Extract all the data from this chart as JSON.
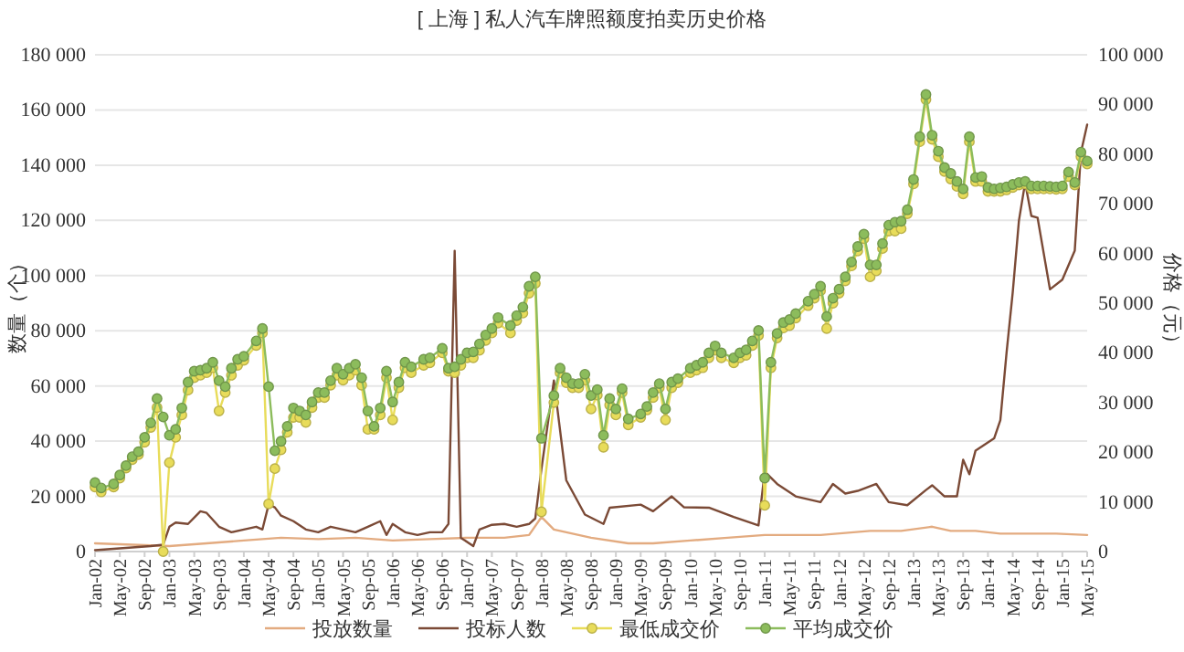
{
  "chart_data": {
    "type": "line",
    "title": "[ 上海 ] 私人汽车牌照额度拍卖历史价格",
    "ylabel": "数量（个）",
    "y2label": "价格（元）",
    "xlim": [
      "2002-01",
      "2015-05"
    ],
    "xticks": [
      {
        "value": "2002-01",
        "label": "Jan-02"
      },
      {
        "value": "2002-05",
        "label": "May-02"
      },
      {
        "value": "2002-09",
        "label": "Sep-02"
      },
      {
        "value": "2003-01",
        "label": "Jan-03"
      },
      {
        "value": "2003-05",
        "label": "May-03"
      },
      {
        "value": "2003-09",
        "label": "Sep-03"
      },
      {
        "value": "2004-01",
        "label": "Jan-04"
      },
      {
        "value": "2004-05",
        "label": "May-04"
      },
      {
        "value": "2004-09",
        "label": "Sep-04"
      },
      {
        "value": "2005-01",
        "label": "Jan-05"
      },
      {
        "value": "2005-05",
        "label": "May-05"
      },
      {
        "value": "2005-09",
        "label": "Sep-05"
      },
      {
        "value": "2006-01",
        "label": "Jan-06"
      },
      {
        "value": "2006-05",
        "label": "May-06"
      },
      {
        "value": "2006-09",
        "label": "Sep-06"
      },
      {
        "value": "2007-01",
        "label": "Jan-07"
      },
      {
        "value": "2007-05",
        "label": "May-07"
      },
      {
        "value": "2007-09",
        "label": "Sep-07"
      },
      {
        "value": "2008-01",
        "label": "Jan-08"
      },
      {
        "value": "2008-05",
        "label": "May-08"
      },
      {
        "value": "2008-09",
        "label": "Sep-08"
      },
      {
        "value": "2009-01",
        "label": "Jan-09"
      },
      {
        "value": "2009-05",
        "label": "May-09"
      },
      {
        "value": "2009-09",
        "label": "Sep-09"
      },
      {
        "value": "2010-01",
        "label": "Jan-10"
      },
      {
        "value": "2010-05",
        "label": "May-10"
      },
      {
        "value": "2010-09",
        "label": "Sep-10"
      },
      {
        "value": "2011-01",
        "label": "Jan-11"
      },
      {
        "value": "2011-05",
        "label": "May-11"
      },
      {
        "value": "2011-09",
        "label": "Sep-11"
      },
      {
        "value": "2012-01",
        "label": "Jan-12"
      },
      {
        "value": "2012-05",
        "label": "May-12"
      },
      {
        "value": "2012-09",
        "label": "Sep-12"
      },
      {
        "value": "2013-01",
        "label": "Jan-13"
      },
      {
        "value": "2013-05",
        "label": "May-13"
      },
      {
        "value": "2013-09",
        "label": "Sep-13"
      },
      {
        "value": "2014-01",
        "label": "Jan-14"
      },
      {
        "value": "2014-05",
        "label": "May-14"
      },
      {
        "value": "2014-09",
        "label": "Sep-14"
      },
      {
        "value": "2015-01",
        "label": "Jan-15"
      },
      {
        "value": "2015-05",
        "label": "May-15"
      }
    ],
    "ylim": [
      0,
      180000
    ],
    "yticks": [
      0,
      {
        "value": 20000,
        "label": "20 000"
      },
      {
        "value": 40000,
        "label": "40 000"
      },
      {
        "value": 60000,
        "label": "60 000"
      },
      {
        "value": 80000,
        "label": "80 000"
      },
      {
        "value": 100000,
        "label": "100 000"
      },
      {
        "value": 120000,
        "label": "120 000"
      },
      {
        "value": 140000,
        "label": "140 000"
      },
      {
        "value": 160000,
        "label": "160 000"
      },
      {
        "value": 180000,
        "label": "180 000"
      }
    ],
    "y2lim": [
      0,
      100000
    ],
    "y2ticks": [
      0,
      {
        "value": 10000,
        "label": "10 000"
      },
      {
        "value": 20000,
        "label": "20 000"
      },
      {
        "value": 30000,
        "label": "30 000"
      },
      {
        "value": 40000,
        "label": "40 000"
      },
      {
        "value": 50000,
        "label": "50 000"
      },
      {
        "value": 60000,
        "label": "60 000"
      },
      {
        "value": 70000,
        "label": "70 000"
      },
      {
        "value": 80000,
        "label": "80 000"
      },
      {
        "value": 90000,
        "label": "90 000"
      },
      {
        "value": 100000,
        "label": "100 000"
      }
    ],
    "grid": "y",
    "legend": "bottom",
    "series": [
      {
        "name": "投放数量",
        "color": "#e3ab80",
        "x": [
          "2002-01",
          "2002-07",
          "2003-01",
          "2003-07",
          "2004-01",
          "2004-07",
          "2005-01",
          "2005-07",
          "2006-01",
          "2006-07",
          "2007-01",
          "2007-07",
          "2007-11",
          "2008-01",
          "2008-03",
          "2008-09",
          "2009-03",
          "2009-07",
          "2010-01",
          "2010-07",
          "2011-01",
          "2011-10",
          "2012-06",
          "2012-11",
          "2013-04",
          "2013-07",
          "2013-11",
          "2014-03",
          "2014-07",
          "2014-12",
          "2015-05"
        ],
        "values": [
          3000,
          2500,
          2000,
          3000,
          4000,
          5000,
          4500,
          5000,
          4000,
          4500,
          5000,
          5000,
          6000,
          12500,
          8000,
          5000,
          3000,
          3000,
          4000,
          5000,
          6000,
          6000,
          7500,
          7500,
          9000,
          7500,
          7500,
          6500,
          6500,
          6500,
          6000
        ]
      },
      {
        "name": "投标人数",
        "color": "#7b4a36",
        "x": [
          "2002-01",
          "2002-04",
          "2002-07",
          "2002-10",
          "2002-12",
          "2003-01",
          "2003-02",
          "2003-04",
          "2003-06",
          "2003-07",
          "2003-09",
          "2003-11",
          "2004-01",
          "2004-03",
          "2004-04",
          "2004-05",
          "2004-06",
          "2004-07",
          "2004-09",
          "2004-11",
          "2005-01",
          "2005-03",
          "2005-05",
          "2005-07",
          "2005-09",
          "2005-11",
          "2005-12",
          "2006-01",
          "2006-03",
          "2006-05",
          "2006-07",
          "2006-09",
          "2006-10",
          "2006-11",
          "2006-12",
          "2007-02",
          "2007-03",
          "2007-05",
          "2007-07",
          "2007-09",
          "2007-11",
          "2007-12",
          "2008-01",
          "2008-03",
          "2008-05",
          "2008-08",
          "2008-11",
          "2008-12",
          "2009-05",
          "2009-07",
          "2009-10",
          "2009-12",
          "2010-04",
          "2010-08",
          "2010-12",
          "2011-01",
          "2011-03",
          "2011-06",
          "2011-10",
          "2011-12",
          "2012-02",
          "2012-04",
          "2012-07",
          "2012-09",
          "2012-12",
          "2013-03",
          "2013-04",
          "2013-06",
          "2013-08",
          "2013-09",
          "2013-10",
          "2013-11",
          "2014-02",
          "2014-03",
          "2014-04",
          "2014-05",
          "2014-06",
          "2014-07",
          "2014-08",
          "2014-09",
          "2014-11",
          "2015-01",
          "2015-03",
          "2015-04",
          "2015-05"
        ],
        "values": [
          500,
          1000,
          1500,
          2000,
          2500,
          9000,
          10500,
          10000,
          14600,
          14000,
          9000,
          7000,
          8000,
          9000,
          8000,
          17000,
          16000,
          13000,
          11000,
          8000,
          7000,
          9000,
          8000,
          7000,
          9000,
          11000,
          6000,
          10000,
          7000,
          6000,
          7000,
          7000,
          10000,
          109000,
          5000,
          2000,
          8000,
          9700,
          10000,
          9000,
          10000,
          12000,
          30000,
          62000,
          25800,
          13400,
          10000,
          15900,
          17000,
          14600,
          20000,
          16000,
          15900,
          12500,
          9500,
          29000,
          24500,
          20000,
          17900,
          24500,
          21000,
          22000,
          24500,
          17900,
          16800,
          22300,
          24000,
          20000,
          20000,
          33300,
          28000,
          36600,
          41000,
          47600,
          72000,
          94000,
          120000,
          133700,
          121600,
          121000,
          95000,
          98500,
          109000,
          144700,
          154700
        ]
      },
      {
        "name": "最低成交价",
        "color": "#e8dc5a",
        "axis": "y2",
        "marker": "circle",
        "x": [
          "2002-01",
          "2002-02",
          "2002-04",
          "2002-05",
          "2002-06",
          "2002-07",
          "2002-08",
          "2002-09",
          "2002-10",
          "2002-11",
          "2002-12",
          "2003-01",
          "2003-02",
          "2003-03",
          "2003-04",
          "2003-05",
          "2003-06",
          "2003-07",
          "2003-08",
          "2003-09",
          "2003-10",
          "2003-11",
          "2003-12",
          "2004-01",
          "2004-03",
          "2004-04",
          "2004-05",
          "2004-06",
          "2004-07",
          "2004-08",
          "2004-09",
          "2004-10",
          "2004-11",
          "2004-12",
          "2005-01",
          "2005-02",
          "2005-03",
          "2005-04",
          "2005-05",
          "2005-06",
          "2005-07",
          "2005-08",
          "2005-09",
          "2005-10",
          "2005-11",
          "2005-12",
          "2006-01",
          "2006-02",
          "2006-03",
          "2006-04",
          "2006-06",
          "2006-07",
          "2006-09",
          "2006-10",
          "2006-11",
          "2006-12",
          "2007-01",
          "2007-02",
          "2007-03",
          "2007-04",
          "2007-05",
          "2007-06",
          "2007-08",
          "2007-09",
          "2007-10",
          "2007-11",
          "2007-12",
          "2008-01",
          "2008-03",
          "2008-04",
          "2008-05",
          "2008-06",
          "2008-07",
          "2008-08",
          "2008-09",
          "2008-10",
          "2008-11",
          "2008-12",
          "2009-01",
          "2009-02",
          "2009-03",
          "2009-05",
          "2009-06",
          "2009-07",
          "2009-08",
          "2009-09",
          "2009-10",
          "2009-11",
          "2010-01",
          "2010-02",
          "2010-03",
          "2010-04",
          "2010-05",
          "2010-06",
          "2010-08",
          "2010-09",
          "2010-10",
          "2010-11",
          "2010-12",
          "2011-01",
          "2011-02",
          "2011-03",
          "2011-04",
          "2011-05",
          "2011-06",
          "2011-08",
          "2011-09",
          "2011-10",
          "2011-11",
          "2011-12",
          "2012-01",
          "2012-02",
          "2012-03",
          "2012-04",
          "2012-05",
          "2012-06",
          "2012-07",
          "2012-08",
          "2012-09",
          "2012-10",
          "2012-11",
          "2012-12",
          "2013-01",
          "2013-02",
          "2013-03",
          "2013-04",
          "2013-05",
          "2013-06",
          "2013-07",
          "2013-08",
          "2013-09",
          "2013-10",
          "2013-11",
          "2013-12",
          "2014-01",
          "2014-02",
          "2014-03",
          "2014-04",
          "2014-05",
          "2014-06",
          "2014-07",
          "2014-08",
          "2014-09",
          "2014-10",
          "2014-11",
          "2014-12",
          "2015-01",
          "2015-02",
          "2015-03",
          "2015-04",
          "2015-05"
        ],
        "values": [
          13000,
          12000,
          13000,
          14800,
          16800,
          18500,
          19500,
          22000,
          25000,
          29000,
          0,
          17900,
          23000,
          27500,
          32500,
          35000,
          35500,
          36000,
          37000,
          28300,
          32000,
          35500,
          37500,
          38500,
          41500,
          44000,
          9600,
          16700,
          20500,
          24000,
          27000,
          27000,
          26000,
          29000,
          31000,
          31000,
          33500,
          35500,
          34500,
          35500,
          36500,
          33500,
          24600,
          24600,
          27500,
          35000,
          26500,
          33000,
          37000,
          36000,
          37500,
          38000,
          40000,
          36300,
          36000,
          37500,
          39000,
          39000,
          40500,
          42500,
          44000,
          46000,
          44000,
          46500,
          48000,
          52000,
          54000,
          8000,
          30000,
          36000,
          34000,
          33000,
          33000,
          34500,
          28700,
          31500,
          21000,
          29500,
          27500,
          32000,
          25500,
          27000,
          28500,
          31000,
          33000,
          26500,
          33000,
          34000,
          36000,
          36500,
          37000,
          39000,
          40500,
          39000,
          38000,
          39000,
          39500,
          41500,
          43500,
          9300,
          37000,
          43000,
          45000,
          45500,
          47000,
          49500,
          51000,
          52500,
          44900,
          50000,
          52000,
          54500,
          57500,
          60500,
          63000,
          55300,
          56500,
          61000,
          64500,
          64500,
          65000,
          68000,
          74000,
          82500,
          91000,
          83000,
          79500,
          76500,
          75000,
          73500,
          72000,
          82500,
          74500,
          74500,
          72500,
          72500,
          72500,
          72800,
          73300,
          73800,
          74000,
          73000,
          73000,
          73000,
          73000,
          72900,
          73000,
          75500,
          73800,
          79500,
          78000
        ]
      },
      {
        "name": "平均成交价",
        "color": "#8cbc5c",
        "axis": "y2",
        "marker": "circle",
        "x": [
          "2002-01",
          "2002-02",
          "2002-04",
          "2002-05",
          "2002-06",
          "2002-07",
          "2002-08",
          "2002-09",
          "2002-10",
          "2002-11",
          "2002-12",
          "2003-01",
          "2003-02",
          "2003-03",
          "2003-04",
          "2003-05",
          "2003-06",
          "2003-07",
          "2003-08",
          "2003-09",
          "2003-10",
          "2003-11",
          "2003-12",
          "2004-01",
          "2004-03",
          "2004-04",
          "2004-05",
          "2004-06",
          "2004-07",
          "2004-08",
          "2004-09",
          "2004-10",
          "2004-11",
          "2004-12",
          "2005-01",
          "2005-02",
          "2005-03",
          "2005-04",
          "2005-05",
          "2005-06",
          "2005-07",
          "2005-08",
          "2005-09",
          "2005-10",
          "2005-11",
          "2005-12",
          "2006-01",
          "2006-02",
          "2006-03",
          "2006-04",
          "2006-06",
          "2006-07",
          "2006-09",
          "2006-10",
          "2006-11",
          "2006-12",
          "2007-01",
          "2007-02",
          "2007-03",
          "2007-04",
          "2007-05",
          "2007-06",
          "2007-08",
          "2007-09",
          "2007-10",
          "2007-11",
          "2007-12",
          "2008-01",
          "2008-03",
          "2008-04",
          "2008-05",
          "2008-06",
          "2008-07",
          "2008-08",
          "2008-09",
          "2008-10",
          "2008-11",
          "2008-12",
          "2009-01",
          "2009-02",
          "2009-03",
          "2009-05",
          "2009-06",
          "2009-07",
          "2009-08",
          "2009-09",
          "2009-10",
          "2009-11",
          "2010-01",
          "2010-02",
          "2010-03",
          "2010-04",
          "2010-05",
          "2010-06",
          "2010-08",
          "2010-09",
          "2010-10",
          "2010-11",
          "2010-12",
          "2011-01",
          "2011-02",
          "2011-03",
          "2011-04",
          "2011-05",
          "2011-06",
          "2011-08",
          "2011-09",
          "2011-10",
          "2011-11",
          "2011-12",
          "2012-01",
          "2012-02",
          "2012-03",
          "2012-04",
          "2012-05",
          "2012-06",
          "2012-07",
          "2012-08",
          "2012-09",
          "2012-10",
          "2012-11",
          "2012-12",
          "2013-01",
          "2013-02",
          "2013-03",
          "2013-04",
          "2013-05",
          "2013-06",
          "2013-07",
          "2013-08",
          "2013-09",
          "2013-10",
          "2013-11",
          "2013-12",
          "2014-01",
          "2014-02",
          "2014-03",
          "2014-04",
          "2014-05",
          "2014-06",
          "2014-07",
          "2014-08",
          "2014-09",
          "2014-10",
          "2014-11",
          "2014-12",
          "2015-01",
          "2015-02",
          "2015-03",
          "2015-04",
          "2015-05"
        ],
        "values": [
          13900,
          12800,
          13600,
          15400,
          17300,
          19100,
          20100,
          23000,
          25900,
          30800,
          27100,
          23400,
          24600,
          28900,
          34100,
          36300,
          36500,
          36900,
          38100,
          34400,
          33200,
          36900,
          38700,
          39300,
          42400,
          44900,
          33200,
          20300,
          22200,
          25200,
          28900,
          28300,
          27500,
          30100,
          32000,
          32000,
          34400,
          36900,
          35700,
          36900,
          37700,
          35000,
          28300,
          25200,
          28900,
          36300,
          30100,
          34100,
          38100,
          37200,
          38700,
          39000,
          40900,
          36900,
          37200,
          38700,
          40000,
          40200,
          41800,
          43600,
          44900,
          47100,
          45500,
          47500,
          49200,
          53400,
          55300,
          22800,
          31400,
          36900,
          35000,
          33800,
          33800,
          35700,
          31400,
          32600,
          23400,
          30800,
          28700,
          32800,
          26700,
          27700,
          29200,
          32000,
          33800,
          28700,
          34100,
          34800,
          36900,
          37500,
          38100,
          40000,
          41400,
          40000,
          39000,
          40000,
          40600,
          42400,
          44500,
          14800,
          38100,
          43900,
          46100,
          46700,
          47900,
          50400,
          51800,
          53400,
          47300,
          51000,
          52800,
          55300,
          58300,
          61400,
          63900,
          57700,
          57700,
          62000,
          65700,
          66300,
          66500,
          68800,
          74900,
          83500,
          92000,
          83800,
          80600,
          77300,
          76100,
          74500,
          73000,
          83500,
          75300,
          75500,
          73300,
          73000,
          73200,
          73400,
          73900,
          74300,
          74500,
          73600,
          73600,
          73600,
          73500,
          73400,
          73600,
          76400,
          74300,
          80400,
          78600
        ]
      }
    ]
  }
}
